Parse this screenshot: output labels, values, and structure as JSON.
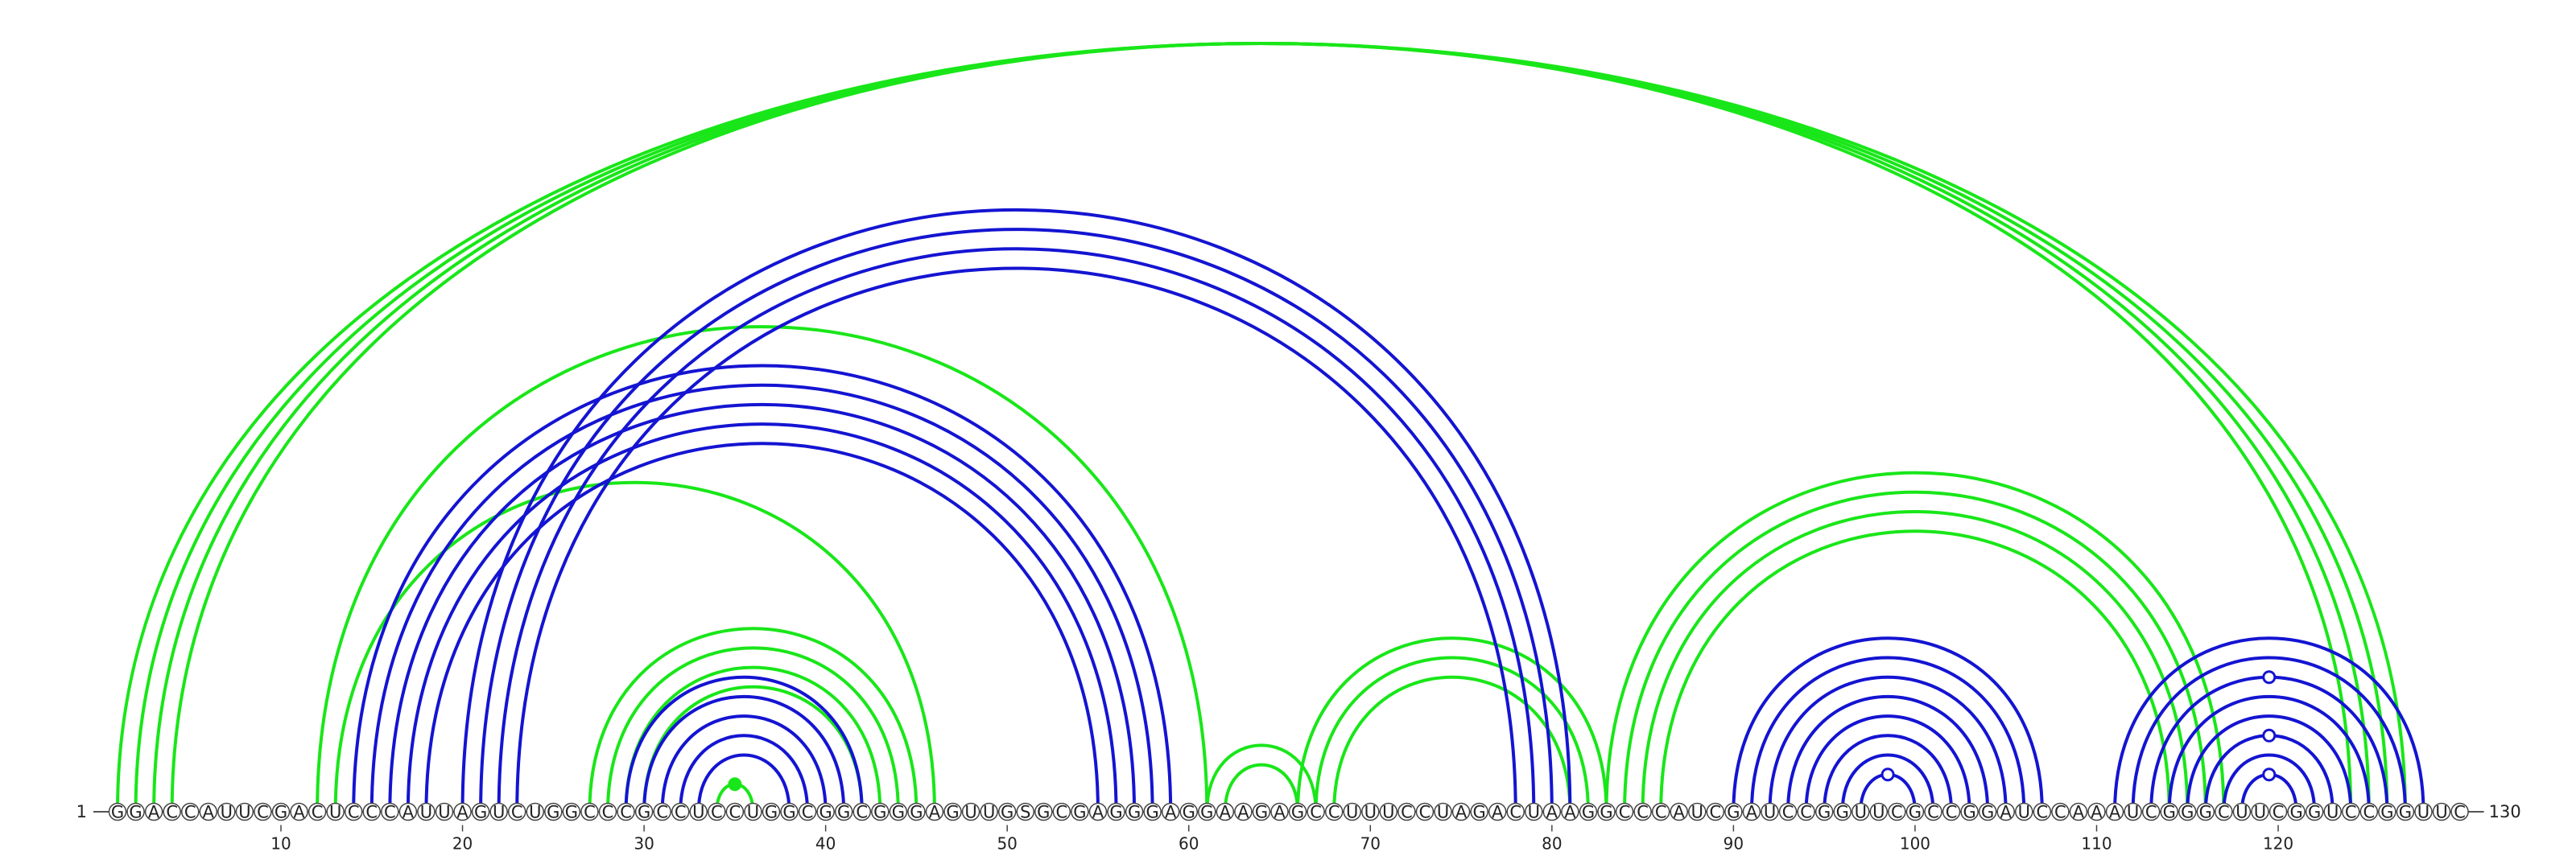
{
  "sequence": "GGACCAUUCGACUCCCAUUAGUCUGGCCCGCCUCCUGGCGGCGGGAGUUGSGCGAGGGAGGAAGAGCCUUUCCUAGACUAAGGCCCAUCGAUCCGGUUCGCCGGAUCCAAAUCGGGCUUCGGUCCGGUUC",
  "start_label": "1",
  "end_label": "130",
  "ticks": [
    10,
    20,
    30,
    40,
    50,
    60,
    70,
    80,
    90,
    100,
    110,
    120
  ],
  "colors": {
    "green": "#19e619",
    "blue": "#1414d2"
  },
  "green_arcs": [
    {
      "i": 1,
      "j": 127
    },
    {
      "i": 2,
      "j": 126
    },
    {
      "i": 3,
      "j": 125
    },
    {
      "i": 4,
      "j": 124
    },
    {
      "i": 12,
      "j": 61
    },
    {
      "i": 13,
      "j": 46
    },
    {
      "i": 27,
      "j": 45
    },
    {
      "i": 28,
      "j": 44
    },
    {
      "i": 29,
      "j": 43
    },
    {
      "i": 30,
      "j": 42
    },
    {
      "i": 34,
      "j": 36
    },
    {
      "i": 61,
      "j": 67
    },
    {
      "i": 62,
      "j": 66
    },
    {
      "i": 66,
      "j": 83
    },
    {
      "i": 67,
      "j": 82
    },
    {
      "i": 68,
      "j": 81
    },
    {
      "i": 83,
      "j": 117
    },
    {
      "i": 84,
      "j": 116
    },
    {
      "i": 85,
      "j": 115
    },
    {
      "i": 86,
      "j": 114
    }
  ],
  "blue_arcs": [
    {
      "i": 14,
      "j": 59
    },
    {
      "i": 15,
      "j": 58
    },
    {
      "i": 16,
      "j": 57
    },
    {
      "i": 17,
      "j": 56
    },
    {
      "i": 18,
      "j": 55
    },
    {
      "i": 20,
      "j": 81
    },
    {
      "i": 21,
      "j": 80
    },
    {
      "i": 22,
      "j": 79
    },
    {
      "i": 23,
      "j": 78
    },
    {
      "i": 29,
      "j": 42
    },
    {
      "i": 30,
      "j": 41
    },
    {
      "i": 31,
      "j": 40
    },
    {
      "i": 32,
      "j": 39
    },
    {
      "i": 33,
      "j": 38
    },
    {
      "i": 90,
      "j": 107
    },
    {
      "i": 91,
      "j": 106
    },
    {
      "i": 92,
      "j": 105
    },
    {
      "i": 93,
      "j": 104
    },
    {
      "i": 94,
      "j": 103
    },
    {
      "i": 95,
      "j": 102
    },
    {
      "i": 96,
      "j": 101
    },
    {
      "i": 97,
      "j": 100
    },
    {
      "i": 111,
      "j": 128
    },
    {
      "i": 112,
      "j": 127
    },
    {
      "i": 113,
      "j": 126
    },
    {
      "i": 114,
      "j": 125
    },
    {
      "i": 115,
      "j": 124
    },
    {
      "i": 116,
      "j": 123
    },
    {
      "i": 117,
      "j": 122
    },
    {
      "i": 118,
      "j": 121
    }
  ],
  "markers": [
    {
      "pos": 35,
      "color": "green",
      "on": "arc",
      "i": 34,
      "j": 36,
      "fill": "solid"
    },
    {
      "pos": 99,
      "color": "blue",
      "on": "arc",
      "i": 97,
      "j": 100,
      "fill": "open"
    },
    {
      "pos": 120,
      "color": "blue",
      "on": "arc",
      "i": 118,
      "j": 121,
      "fill": "open"
    },
    {
      "pos": 120,
      "color": "blue",
      "on": "arc",
      "i": 116,
      "j": 123,
      "fill": "open"
    },
    {
      "pos": 120,
      "color": "blue",
      "on": "arc",
      "i": 113,
      "j": 126,
      "fill": "open"
    }
  ]
}
